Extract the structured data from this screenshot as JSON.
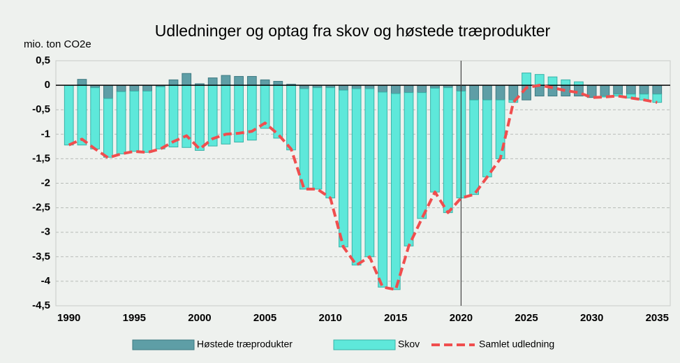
{
  "chart_data": {
    "type": "bar",
    "title": "Udledninger og optag fra skov og høstede træprodukter",
    "y_label": "mio. ton CO2e",
    "x": [
      1990,
      1991,
      1992,
      1993,
      1994,
      1995,
      1996,
      1997,
      1998,
      1999,
      2000,
      2001,
      2002,
      2003,
      2004,
      2005,
      2006,
      2007,
      2008,
      2009,
      2010,
      2011,
      2012,
      2013,
      2014,
      2015,
      2016,
      2017,
      2018,
      2019,
      2020,
      2021,
      2022,
      2023,
      2024,
      2025,
      2026,
      2027,
      2028,
      2029,
      2030,
      2031,
      2032,
      2033,
      2034,
      2035
    ],
    "xlim": [
      1989,
      2036
    ],
    "xticks": [
      1990,
      1995,
      2000,
      2005,
      2010,
      2015,
      2020,
      2025,
      2030,
      2035
    ],
    "ylim": [
      -4.5,
      0.5
    ],
    "yticks": [
      {
        "value": 0.5,
        "label": "0,5"
      },
      0,
      {
        "value": -0.5,
        "label": "-0,5"
      },
      -1,
      {
        "value": -1.5,
        "label": "-1,5"
      },
      -2,
      {
        "value": -2.5,
        "label": "-2,5"
      },
      -3,
      {
        "value": -3.5,
        "label": "-3,5"
      },
      -4,
      {
        "value": -4.5,
        "label": "-4,5"
      }
    ],
    "grid": true,
    "vertical_line": 2020,
    "legend": "bottom",
    "series": [
      {
        "name": "Høstede træprodukter",
        "type": "bar",
        "color": "#5e9ea6",
        "values": [
          0,
          0.12,
          -0.05,
          -0.27,
          -0.13,
          -0.12,
          -0.12,
          -0.03,
          0.11,
          0.24,
          0.03,
          0.15,
          0.2,
          0.18,
          0.18,
          0.11,
          0.08,
          0.02,
          -0.07,
          -0.05,
          -0.05,
          -0.1,
          -0.07,
          -0.07,
          -0.14,
          -0.17,
          -0.15,
          -0.15,
          -0.06,
          -0.05,
          -0.12,
          -0.3,
          -0.3,
          -0.3,
          -0.3,
          -0.3,
          -0.22,
          -0.22,
          -0.22,
          -0.22,
          -0.25,
          -0.22,
          -0.18,
          -0.18,
          -0.18,
          -0.18
        ]
      },
      {
        "name": "Skov",
        "type": "bar",
        "color": "#5ee8da",
        "values": [
          -1.22,
          -1.22,
          -1.25,
          -1.2,
          -1.27,
          -1.23,
          -1.25,
          -1.27,
          -1.26,
          -1.27,
          -1.33,
          -1.24,
          -1.2,
          -1.16,
          -1.12,
          -0.88,
          -1.08,
          -1.32,
          -2.05,
          -2.07,
          -2.25,
          -3.2,
          -3.6,
          -3.43,
          -3.98,
          -4.0,
          -3.13,
          -2.57,
          -2.12,
          -2.55,
          -2.18,
          -1.93,
          -1.57,
          -1.2,
          -0.05,
          0.25,
          0.22,
          0.17,
          0.11,
          0.07,
          0,
          -0.02,
          -0.04,
          -0.08,
          -0.12,
          -0.17
        ]
      },
      {
        "name": "Samlet udledning",
        "type": "line",
        "color": "#f04e4e",
        "values": [
          -1.22,
          -1.1,
          -1.3,
          -1.48,
          -1.4,
          -1.35,
          -1.37,
          -1.3,
          -1.15,
          -1.03,
          -1.3,
          -1.09,
          -1.0,
          -0.98,
          -0.94,
          -0.77,
          -1.0,
          -1.3,
          -2.12,
          -2.12,
          -2.3,
          -3.3,
          -3.67,
          -3.5,
          -4.12,
          -4.17,
          -3.28,
          -2.72,
          -2.18,
          -2.6,
          -2.3,
          -2.23,
          -1.87,
          -1.5,
          -0.35,
          -0.05,
          0,
          -0.05,
          -0.11,
          -0.15,
          -0.25,
          -0.24,
          -0.22,
          -0.26,
          -0.3,
          -0.35
        ]
      }
    ]
  }
}
